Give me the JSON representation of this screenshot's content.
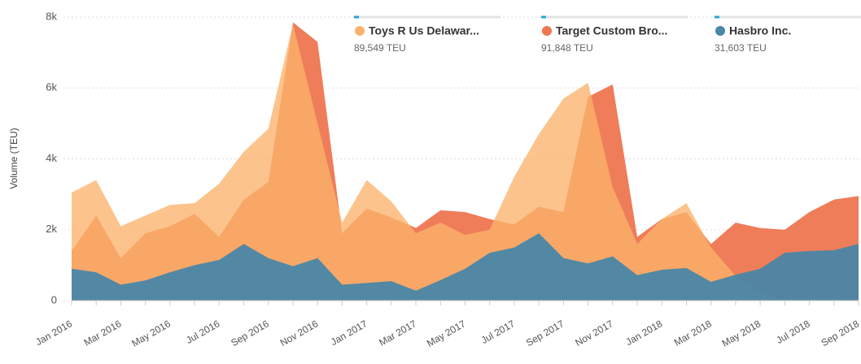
{
  "chart_data": {
    "type": "area",
    "y_label": "Volume (TEU)",
    "categories": [
      "Jan 2016",
      null,
      "Mar 2016",
      null,
      "May 2016",
      null,
      "Jul 2016",
      null,
      "Sep 2016",
      null,
      "Nov 2016",
      null,
      "Jan 2017",
      null,
      "Mar 2017",
      null,
      "May 2017",
      null,
      "Jul 2017",
      null,
      "Sep 2017",
      null,
      "Nov 2017",
      null,
      "Jan 2018",
      null,
      "Mar 2018",
      null,
      "May 2018",
      null,
      "Jul 2018",
      null,
      "Sep 2018"
    ],
    "ylim": [
      0,
      8000
    ],
    "yticks": [
      0,
      {
        "value": 2000,
        "label": "2k"
      },
      {
        "value": 4000,
        "label": "4k"
      },
      {
        "value": 6000,
        "label": "6k"
      },
      {
        "value": 8000,
        "label": "8k"
      }
    ],
    "grid": true,
    "legend": "top",
    "series": [
      {
        "name": "Target Custom Bro...",
        "total": "91,848 TEU",
        "color": "#ee7650",
        "values": [
          1400,
          2400,
          1200,
          1900,
          2100,
          2450,
          1800,
          2850,
          3350,
          7850,
          7300,
          1900,
          2600,
          2350,
          2050,
          2550,
          2500,
          2300,
          2150,
          2650,
          2500,
          5750,
          6100,
          1800,
          2300,
          2500,
          1600,
          2200,
          2050,
          2000,
          2500,
          2850,
          2950
        ]
      },
      {
        "name": "Toys R Us Delawar...",
        "total": "89,549 TEU",
        "color": "#fbb36b",
        "values": [
          3050,
          3400,
          2100,
          2400,
          2700,
          2750,
          3300,
          4200,
          4850,
          7800,
          5000,
          2200,
          3400,
          2800,
          1900,
          2200,
          1850,
          2000,
          3500,
          4700,
          5700,
          6150,
          3200,
          1600,
          2300,
          2750,
          1500,
          700,
          200,
          0,
          0,
          0,
          0
        ]
      },
      {
        "name": "Hasbro Inc.",
        "total": "31,603 TEU",
        "color": "#4a86a8",
        "values": [
          900,
          800,
          450,
          570,
          800,
          1000,
          1150,
          1600,
          1200,
          970,
          1200,
          450,
          500,
          550,
          280,
          580,
          900,
          1350,
          1500,
          1900,
          1200,
          1050,
          1250,
          720,
          870,
          920,
          530,
          730,
          900,
          1350,
          1400,
          1420,
          1600
        ]
      }
    ]
  }
}
